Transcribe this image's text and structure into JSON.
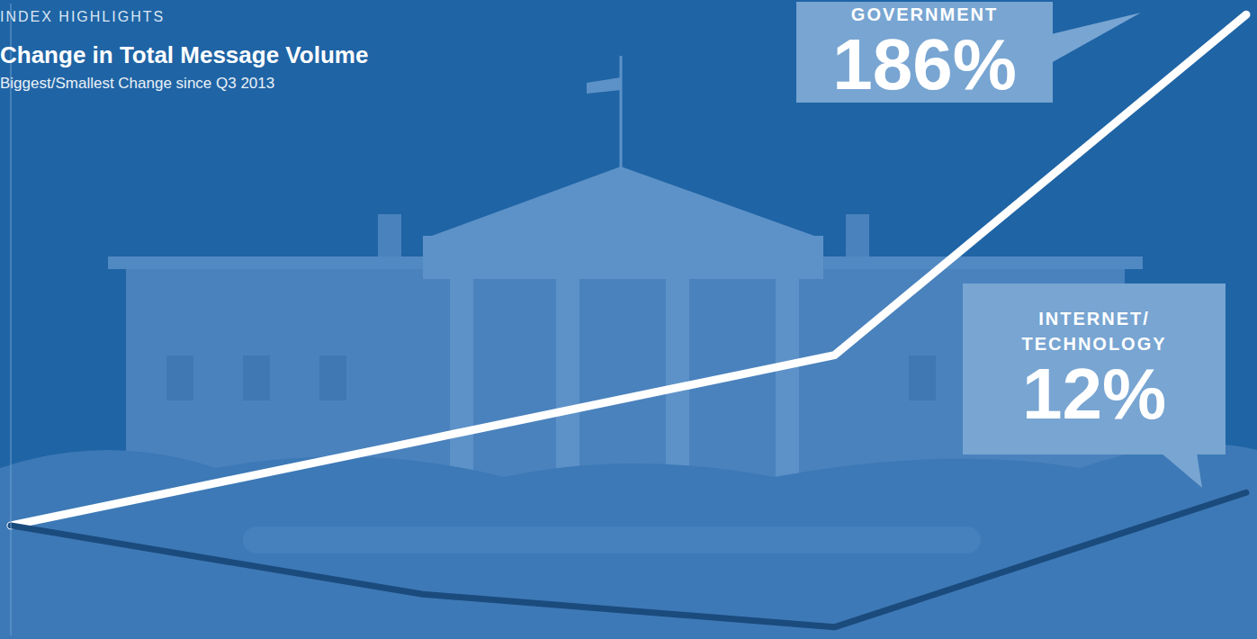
{
  "chart_data": {
    "type": "line",
    "annotations": [
      "INDEX HIGHLIGHTS"
    ],
    "title": "Change in Total Message Volume",
    "subtitle": "Biggest/Smallest Change since Q3 2013",
    "categories": [
      null,
      null,
      null,
      null
    ],
    "series": [
      {
        "name": "GOVERNMENT",
        "color": "#ffffff",
        "values": [
          0,
          31,
          62,
          186
        ],
        "value_labels": [
          null,
          null,
          null,
          "186%"
        ]
      },
      {
        "name": "INTERNET/ TECHNOLOGY",
        "color": "#1b4b7d",
        "values": [
          0,
          -25,
          -37,
          12
        ],
        "value_labels": [
          null,
          null,
          null,
          "12%"
        ]
      }
    ],
    "ylim": [
      -40,
      190
    ],
    "yticks": [],
    "tick_labels": false,
    "grid": false
  }
}
